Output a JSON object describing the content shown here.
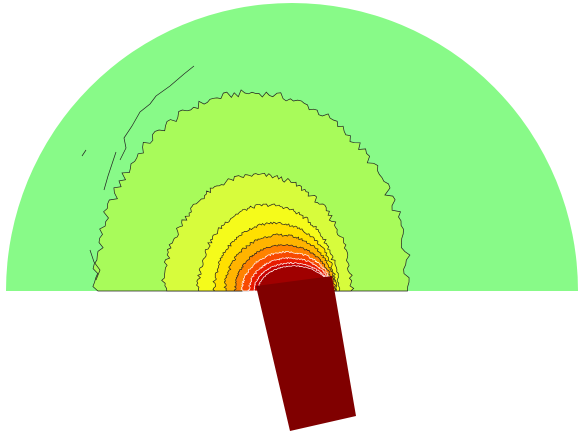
{
  "figure": {
    "kind": "filled contour plot on a half-disc domain with a tilted rectangular source",
    "contour_levels": 11,
    "colors": {
      "background": "#ffffff",
      "domain_fill": "#88fa88",
      "level_1": "#a8fb5a",
      "level_2": "#d7fc3c",
      "level_3": "#f5fb1b",
      "level_4": "#ffe000",
      "level_5": "#ffb400",
      "level_6": "#ff8200",
      "level_7": "#f74a00",
      "level_8": "#e81a00",
      "level_9": "#c80000",
      "level_10": "#a00000",
      "source_block": "#800000",
      "contour_line": "#222222",
      "inner_contour_line": "#ffffff"
    }
  }
}
